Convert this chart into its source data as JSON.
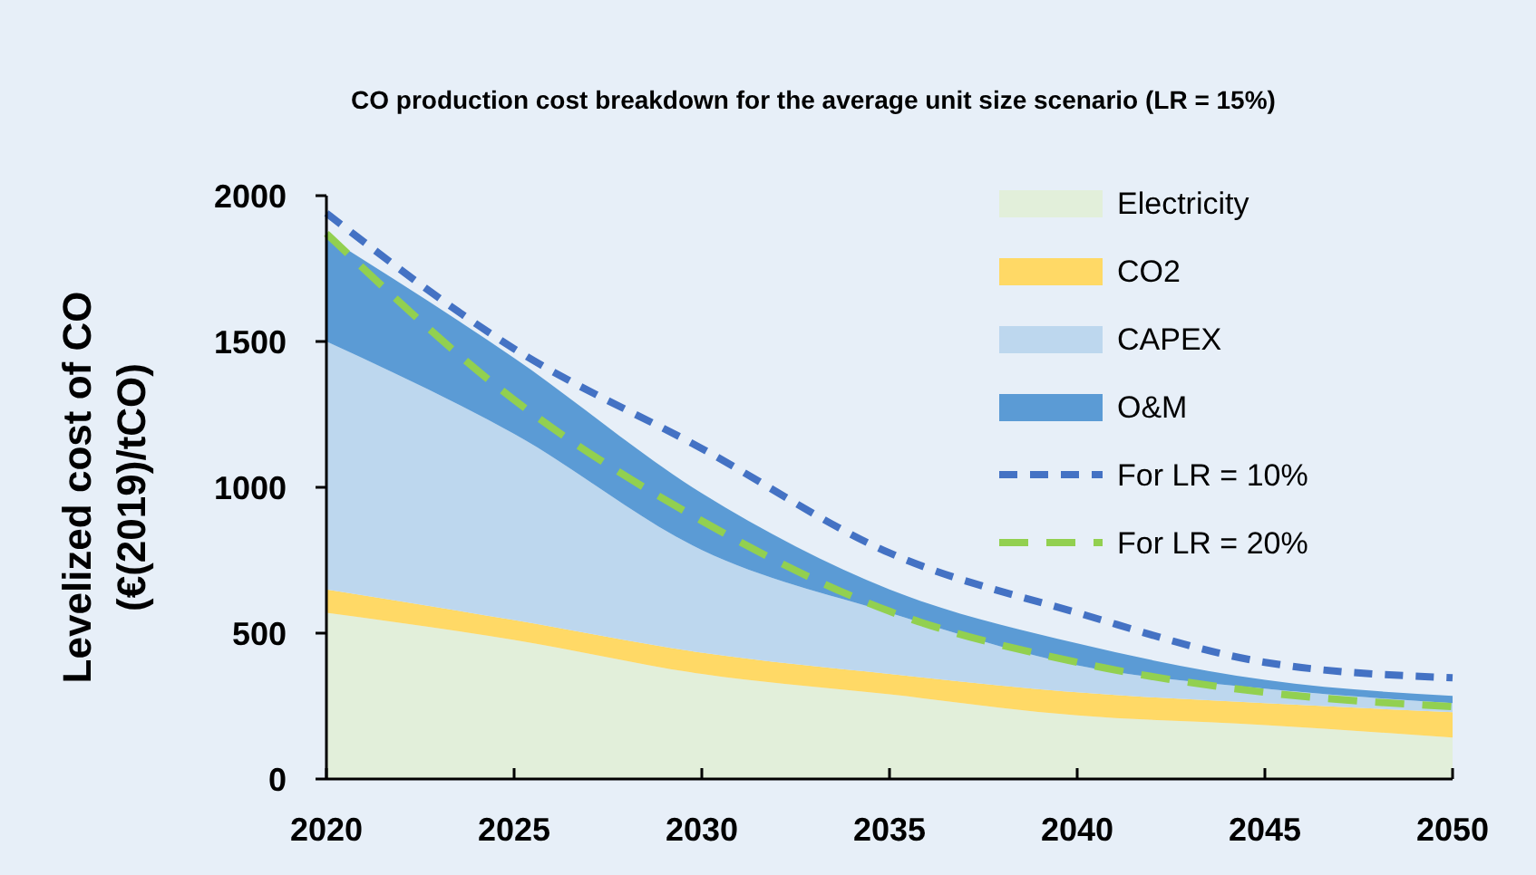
{
  "chart_data": {
    "type": "area",
    "stacked": true,
    "title": "CO production cost breakdown for the average unit size scenario (LR = 15%)",
    "ylabel": "Levelized cost of CO\n(€(2019)/tCO)",
    "x": [
      2020,
      2025,
      2030,
      2035,
      2040,
      2045,
      2050
    ],
    "xlim": [
      2020,
      2050
    ],
    "xticks": [
      2020,
      2025,
      2030,
      2035,
      2040,
      2045,
      2050
    ],
    "ylim": [
      0,
      2000
    ],
    "yticks": [
      0,
      500,
      1000,
      1500,
      2000
    ],
    "legend": "top right",
    "grid": false,
    "marker": "none",
    "series": [
      {
        "name": "Electricity",
        "color": "#e2efda",
        "values": [
          570,
          477,
          360,
          290,
          218,
          185,
          142
        ]
      },
      {
        "name": "CO2",
        "color": "#ffd966",
        "values": [
          80,
          68,
          73,
          70,
          79,
          75,
          87
        ]
      },
      {
        "name": "CAPEX",
        "color": "#bdd7ee",
        "values": [
          850,
          638,
          352,
          210,
          93,
          50,
          31
        ]
      },
      {
        "name": "O&M",
        "color": "#5b9bd5",
        "values": [
          360,
          260,
          195,
          80,
          75,
          30,
          25
        ]
      },
      {
        "name": "For LR = 10%",
        "type": "line",
        "line_style": "dashed",
        "color": "#4472c4",
        "values": [
          1940,
          1475,
          1133,
          775,
          570,
          400,
          347
        ]
      },
      {
        "name": "For LR = 20%",
        "type": "line",
        "line_style": "dashed",
        "color": "#92d050",
        "values": [
          1870,
          1300,
          885,
          575,
          400,
          297,
          248
        ]
      }
    ]
  }
}
